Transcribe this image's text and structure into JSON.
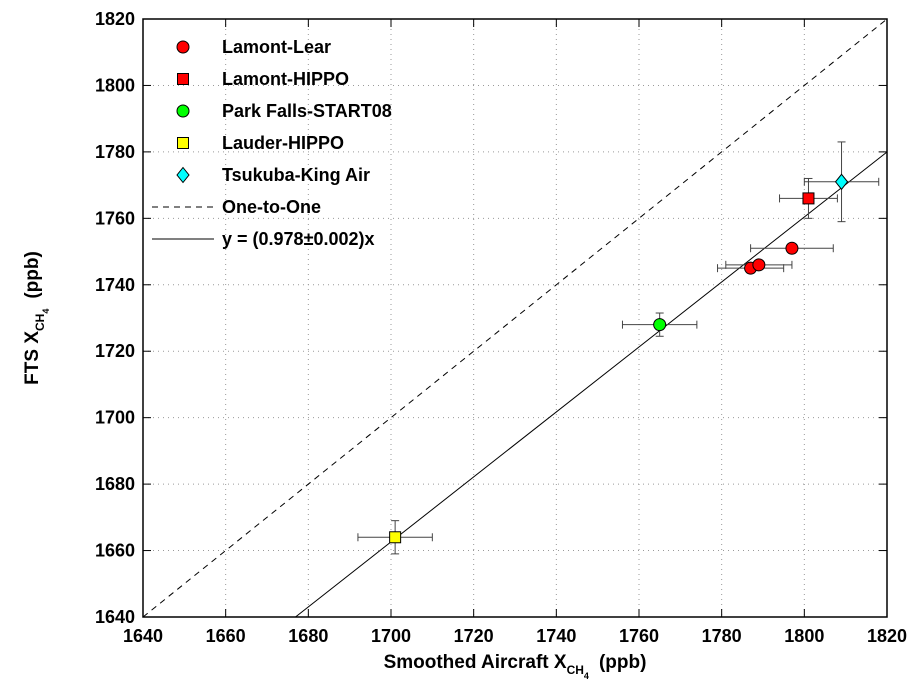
{
  "chart_data": {
    "type": "scatter",
    "xlabel": {
      "prefix": "Smoothed Aircraft X",
      "sub": "CH",
      "subsub": "4",
      "suffix": "(ppb)"
    },
    "ylabel": {
      "prefix": "FTS X",
      "sub": "CH",
      "subsub": "4",
      "suffix": "(ppb)"
    },
    "xlim": [
      1640,
      1820
    ],
    "ylim": [
      1640,
      1820
    ],
    "xticks": [
      1640,
      1660,
      1680,
      1700,
      1720,
      1740,
      1760,
      1780,
      1800,
      1820
    ],
    "yticks": [
      1640,
      1660,
      1680,
      1700,
      1720,
      1740,
      1760,
      1780,
      1800,
      1820
    ],
    "grid": true,
    "legend_position": "top-left",
    "series": [
      {
        "name": "Lamont-Lear",
        "marker": "circle",
        "color": "#ff0000",
        "points": [
          {
            "x": 1787,
            "y": 1745,
            "xerr": 8,
            "yerr": 1
          },
          {
            "x": 1789,
            "y": 1746,
            "xerr": 8,
            "yerr": 1
          },
          {
            "x": 1797,
            "y": 1751,
            "xerr": 10,
            "yerr": 1
          }
        ]
      },
      {
        "name": "Lamont-HIPPO",
        "marker": "square",
        "color": "#ff0000",
        "points": [
          {
            "x": 1801,
            "y": 1766,
            "xerr": 7,
            "yerr": 6
          }
        ]
      },
      {
        "name": "Park Falls-START08",
        "marker": "circle",
        "color": "#00ff00",
        "points": [
          {
            "x": 1765,
            "y": 1728,
            "xerr": 9,
            "yerr": 3.5
          }
        ]
      },
      {
        "name": "Lauder-HIPPO",
        "marker": "square",
        "color": "#ffff00",
        "points": [
          {
            "x": 1701,
            "y": 1664,
            "xerr": 9,
            "yerr": 5
          }
        ]
      },
      {
        "name": "Tsukuba-King Air",
        "marker": "diamond",
        "color": "#00ffff",
        "points": [
          {
            "x": 1809,
            "y": 1771,
            "xerr": 9,
            "yerr": 12
          }
        ]
      }
    ],
    "lines": [
      {
        "name": "One-to-One",
        "style": "dashed",
        "slope": 1.0
      },
      {
        "name": "y = (0.978±0.002)x",
        "style": "solid",
        "slope": 0.978
      }
    ]
  }
}
